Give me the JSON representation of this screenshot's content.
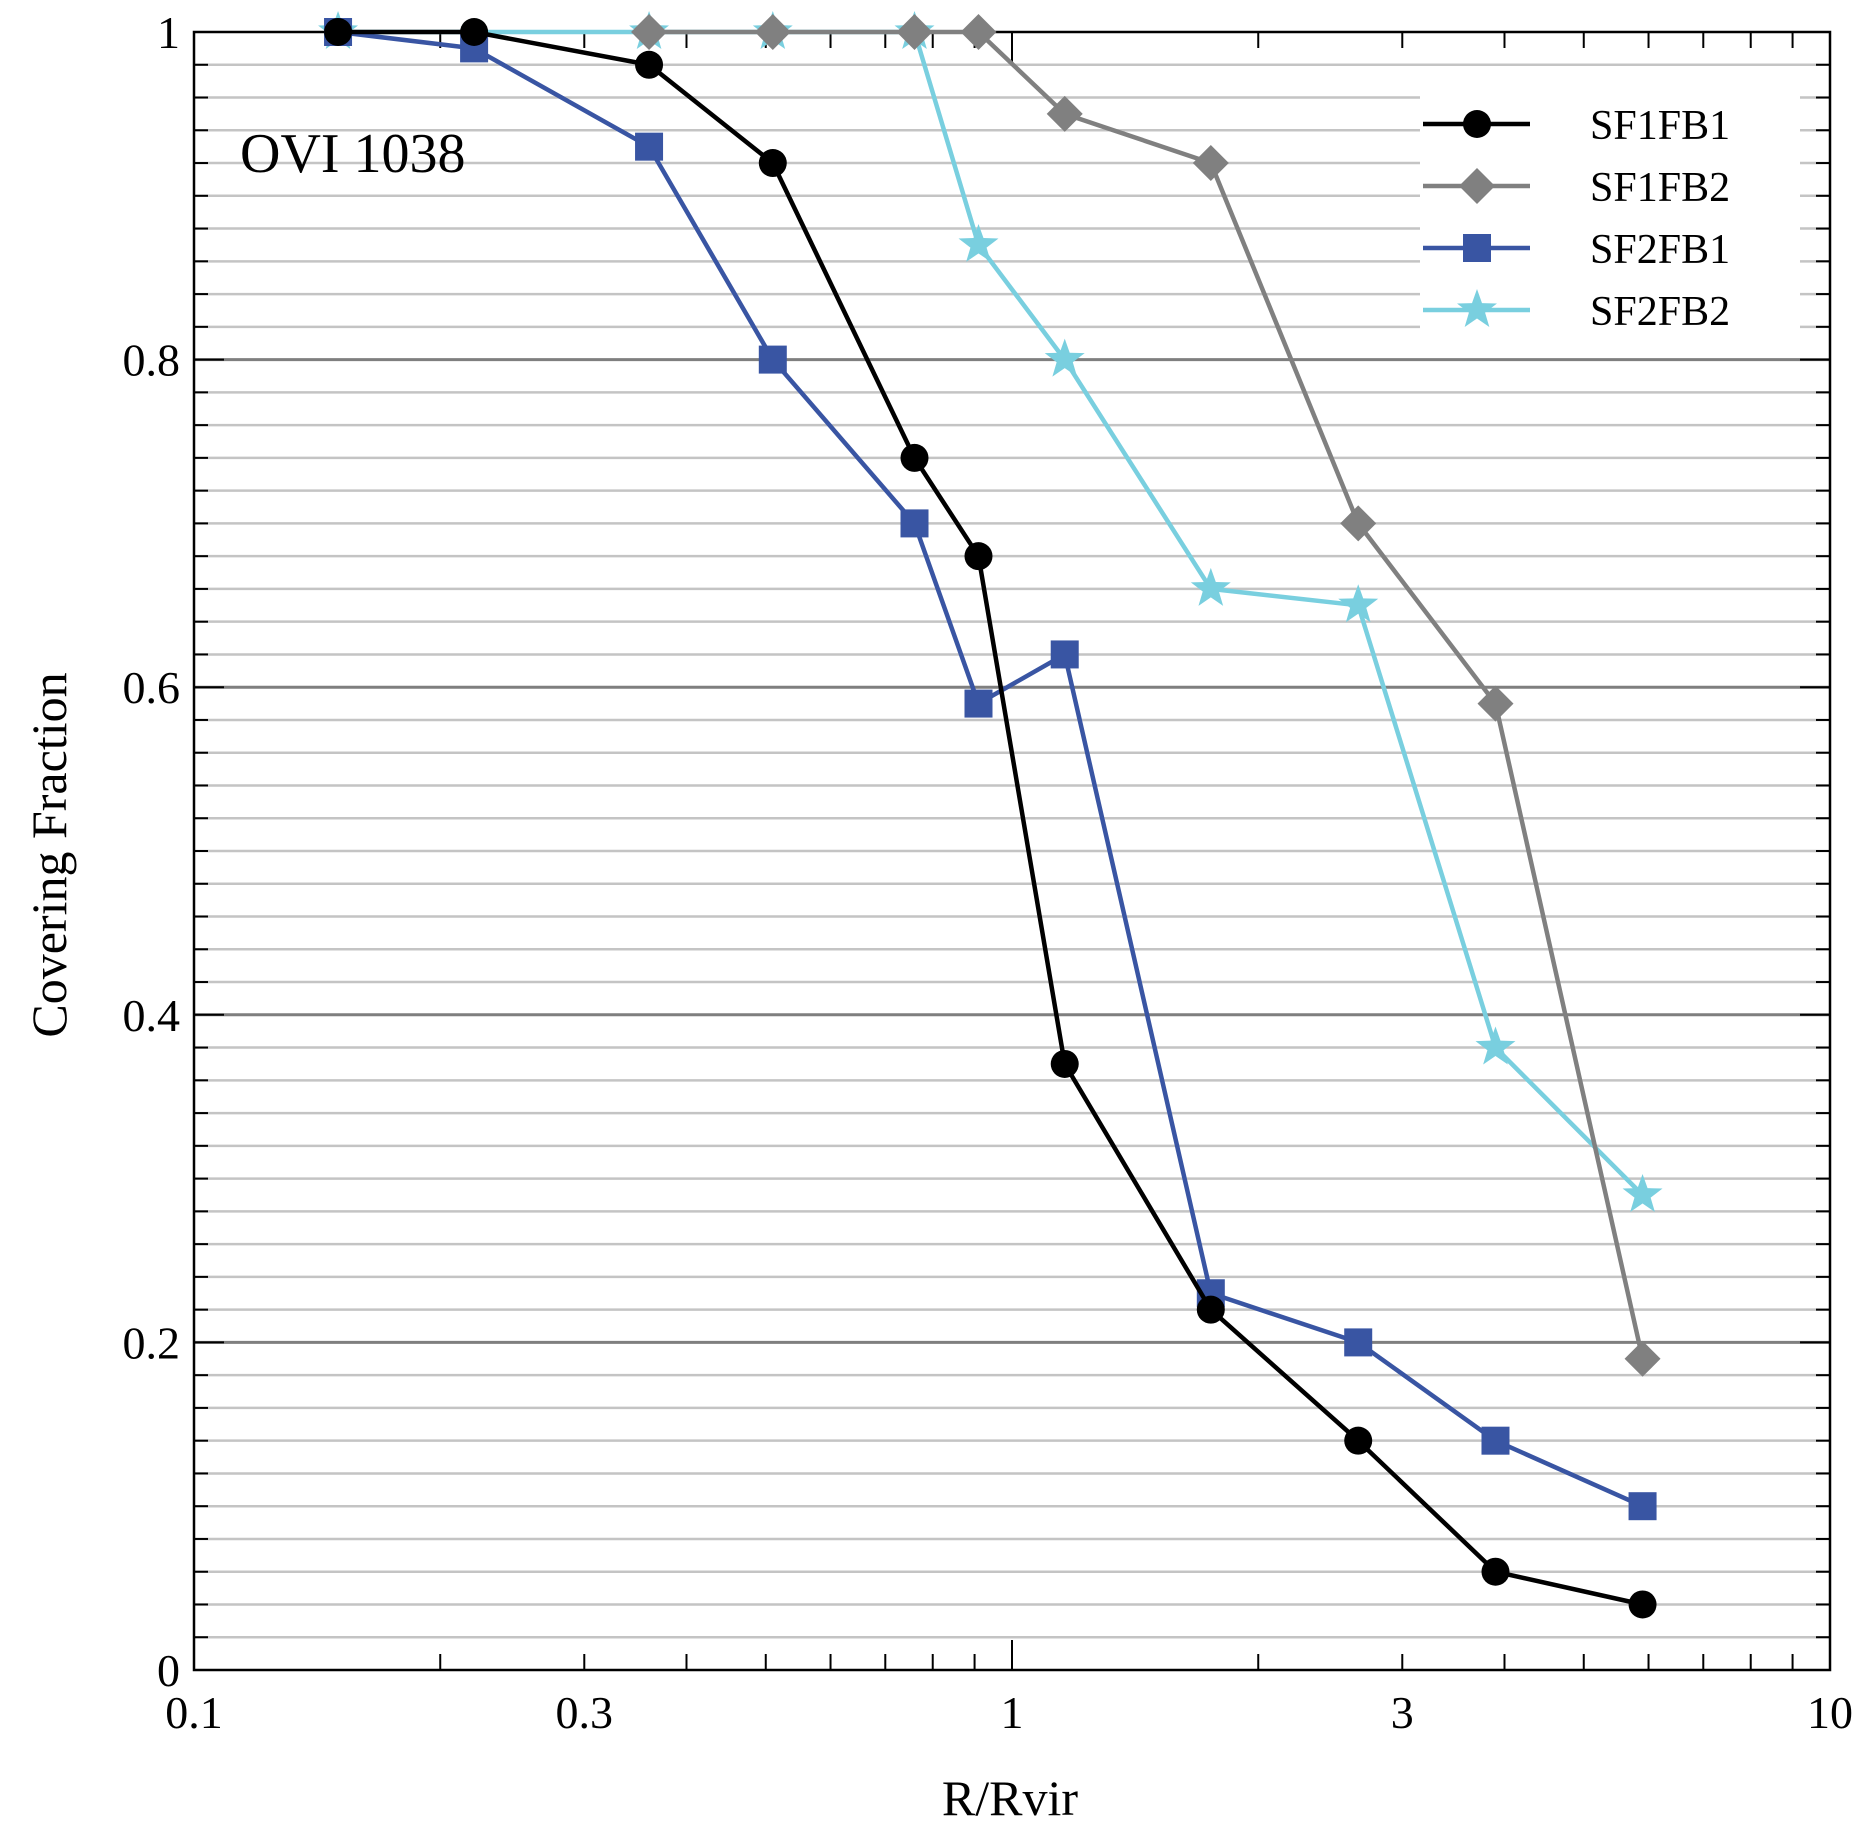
{
  "chart_data": {
    "type": "line",
    "title": "",
    "annotation": "OVI 1038",
    "xlabel": "R/Rvir",
    "ylabel": "Covering Fraction",
    "xscale": "log",
    "xlim": [
      0.1,
      10
    ],
    "ylim": [
      0,
      1
    ],
    "xticks": [
      {
        "value": 0.1,
        "label": "0.1"
      },
      {
        "value": 0.3,
        "label": "0.3"
      },
      {
        "value": 1,
        "label": "1"
      },
      {
        "value": 3,
        "label": "3"
      },
      {
        "value": 10,
        "label": "10"
      }
    ],
    "yticks": [
      {
        "value": 0,
        "label": "0"
      },
      {
        "value": 0.2,
        "label": "0.2"
      },
      {
        "value": 0.4,
        "label": "0.4"
      },
      {
        "value": 0.6,
        "label": "0.6"
      },
      {
        "value": 0.8,
        "label": "0.8"
      },
      {
        "value": 1,
        "label": "1"
      }
    ],
    "grid": "horizontal",
    "legend_position": "top-right",
    "series": [
      {
        "name": "SF1FB1",
        "color": "#000000",
        "marker": "circle",
        "x": [
          0.15,
          0.22,
          0.36,
          0.51,
          0.76,
          0.91,
          1.16,
          1.75,
          2.65,
          3.9,
          5.9
        ],
        "y": [
          1.0,
          1.0,
          0.98,
          0.92,
          0.74,
          0.68,
          0.37,
          0.22,
          0.14,
          0.06,
          0.04
        ]
      },
      {
        "name": "SF1FB2",
        "color": "#808080",
        "marker": "diamond",
        "x": [
          0.36,
          0.51,
          0.76,
          0.91,
          1.16,
          1.75,
          2.65,
          3.9,
          5.9
        ],
        "y": [
          1.0,
          1.0,
          1.0,
          1.0,
          0.95,
          0.92,
          0.7,
          0.59,
          0.19
        ]
      },
      {
        "name": "SF2FB1",
        "color": "#3955a3",
        "marker": "square",
        "x": [
          0.15,
          0.22,
          0.36,
          0.51,
          0.76,
          0.91,
          1.16,
          1.75,
          2.65,
          3.9,
          5.9
        ],
        "y": [
          1.0,
          0.99,
          0.93,
          0.8,
          0.7,
          0.59,
          0.62,
          0.23,
          0.2,
          0.14,
          0.1
        ]
      },
      {
        "name": "SF2FB2",
        "color": "#79cfdf",
        "marker": "star",
        "x": [
          0.15,
          0.36,
          0.51,
          0.76,
          0.91,
          1.16,
          1.75,
          2.65,
          3.9,
          5.9
        ],
        "y": [
          1.0,
          1.0,
          1.0,
          1.0,
          0.87,
          0.8,
          0.66,
          0.65,
          0.38,
          0.29
        ]
      }
    ]
  }
}
